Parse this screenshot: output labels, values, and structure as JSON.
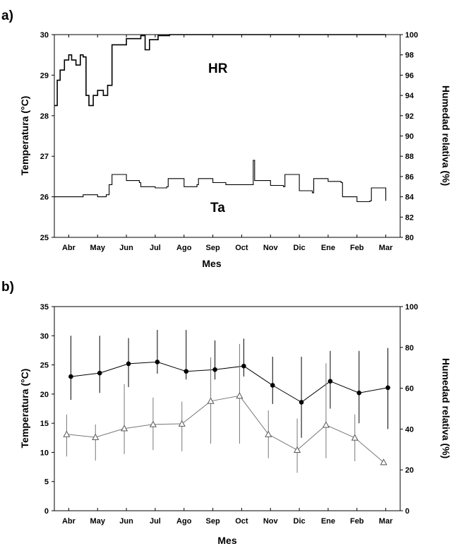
{
  "chart_data": [
    {
      "panel": "a)",
      "type": "line",
      "title": "",
      "xlabel": "Mes",
      "ylabel_left": "Temperatura (°C)",
      "ylabel_right": "Humedad relativa (%)",
      "ylim_left": [
        25,
        30
      ],
      "ylim_right": [
        80,
        100
      ],
      "yticks_left": [
        25,
        26,
        27,
        28,
        29,
        30
      ],
      "yticks_right": [
        80,
        82,
        84,
        86,
        88,
        90,
        92,
        94,
        96,
        98,
        100
      ],
      "categories": [
        "Abr",
        "May",
        "Jun",
        "Jul",
        "Ago",
        "Sep",
        "Oct",
        "Nov",
        "Dic",
        "Ene",
        "Feb",
        "Mar"
      ],
      "annotations": [
        "HR",
        "Ta"
      ],
      "grid": false,
      "series": [
        {
          "label": "HR",
          "axis": "right",
          "x": [
            0,
            0.1,
            0.2,
            0.35,
            0.5,
            0.6,
            0.75,
            0.9,
            1.0,
            1.1,
            1.2,
            1.35,
            1.5,
            1.7,
            1.85,
            2.0,
            2.5,
            3.0,
            3.15,
            3.3,
            3.6,
            4.0,
            5.0,
            6.0,
            7.0,
            8.0,
            9.0,
            10.0,
            11.0,
            11.5
          ],
          "values": [
            93,
            95.5,
            96.5,
            97.5,
            98,
            97.5,
            97,
            98,
            97.8,
            94,
            93,
            94,
            94.5,
            94,
            95,
            99,
            99.6,
            99.9,
            98.5,
            99.5,
            99.9,
            100,
            100,
            100,
            100,
            100,
            100,
            100,
            100,
            100
          ]
        },
        {
          "label": "Ta",
          "axis": "left",
          "x": [
            0,
            0.5,
            1.0,
            1.5,
            1.8,
            1.9,
            2.0,
            2.5,
            2.95,
            3.0,
            3.5,
            3.9,
            3.95,
            4.5,
            4.95,
            5.0,
            5.5,
            5.95,
            6.0,
            6.5,
            6.9,
            6.95,
            7.5,
            7.95,
            8.0,
            8.5,
            8.95,
            9.0,
            9.5,
            9.95,
            10.0,
            10.5,
            10.95,
            11.0,
            11.5
          ],
          "values": [
            26.0,
            26.0,
            26.05,
            26.0,
            26.05,
            26.3,
            26.55,
            26.4,
            26.35,
            26.25,
            26.22,
            26.25,
            26.45,
            26.25,
            26.3,
            26.45,
            26.35,
            26.3,
            26.3,
            26.3,
            26.9,
            26.4,
            26.28,
            26.25,
            26.55,
            26.15,
            26.1,
            26.45,
            26.38,
            26.35,
            26.0,
            25.88,
            25.9,
            26.22,
            25.9
          ]
        }
      ]
    },
    {
      "panel": "b)",
      "type": "line",
      "title": "",
      "xlabel": "Mes",
      "ylabel_left": "Temperatura (°C)",
      "ylabel_right": "Humedad relativa (%)",
      "ylim_left": [
        0,
        35
      ],
      "ylim_right": [
        0,
        100
      ],
      "yticks_left": [
        0,
        5,
        10,
        15,
        20,
        25,
        30,
        35
      ],
      "yticks_right": [
        0,
        20,
        40,
        60,
        80,
        100
      ],
      "categories": [
        "Abr",
        "May",
        "Jun",
        "Jul",
        "Ago",
        "Sep",
        "Oct",
        "Nov",
        "Dic",
        "Ene",
        "Feb",
        "Mar"
      ],
      "grid": false,
      "series": [
        {
          "marker": "filled-circle",
          "axis": "left",
          "values": [
            23.0,
            23.6,
            25.2,
            25.5,
            23.9,
            24.2,
            24.8,
            21.5,
            18.6,
            22.2,
            20.2,
            21.1
          ],
          "err_low": [
            19.0,
            20.2,
            21.2,
            23.5,
            22.5,
            22.5,
            23.0,
            18.3,
            12.5,
            17.5,
            15.0,
            14.0
          ],
          "err_high": [
            30.0,
            30.0,
            29.6,
            31.0,
            31.0,
            29.2,
            29.5,
            26.4,
            26.4,
            27.4,
            27.4,
            27.9
          ]
        },
        {
          "marker": "open-triangle",
          "axis": "left",
          "values": [
            13.1,
            12.6,
            14.1,
            14.8,
            14.9,
            18.8,
            19.7,
            13.1,
            10.4,
            14.7,
            12.5,
            8.3
          ],
          "err_low": [
            9.3,
            8.6,
            9.7,
            10.4,
            10.2,
            11.5,
            11.5,
            9.0,
            6.5,
            9.0,
            8.5,
            7.8
          ],
          "err_high": [
            16.5,
            14.8,
            21.7,
            19.4,
            18.7,
            26.3,
            28.6,
            17.2,
            15.8,
            25.3,
            16.5,
            8.8
          ]
        }
      ]
    }
  ]
}
